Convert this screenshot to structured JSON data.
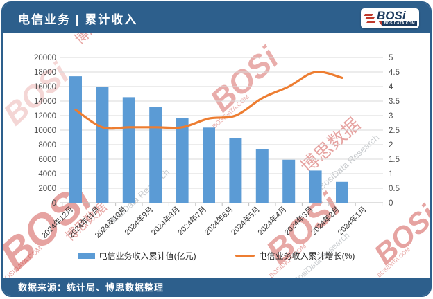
{
  "header": {
    "title": "电信业务 | 累计收入"
  },
  "logo": {
    "name": "BOSi",
    "domain": "BOSIDATA.COM"
  },
  "footer": {
    "source": "数据来源：统计局、博思数据整理"
  },
  "watermark": {
    "brand": "BOSi",
    "brand_cn": "博思数据",
    "research": "BosiData Research",
    "domain": "BOSIDATA.COM"
  },
  "colors": {
    "header_bg": "#2d5f8c",
    "bar": "#5b9bd5",
    "line": "#ed7d31",
    "grid": "#d9d9d9",
    "axis_line": "#bfbfbf",
    "tick_text": "#4d4d4d",
    "x_label_text": "#333333",
    "watermark_red": "#cf4a45",
    "watermark_gray": "#9aa0a6"
  },
  "chart_data": {
    "type": "bar+line combo",
    "categories": [
      "2024年12月",
      "2024年11月",
      "2024年10月",
      "2024年9月",
      "2024年8月",
      "2024年7月",
      "2024年6月",
      "2024年5月",
      "2024年4月",
      "2024年3月",
      "2024年2月",
      "2024年1月"
    ],
    "series": [
      {
        "name": "电信业务收入累计值(亿元)",
        "type": "bar",
        "axis": "left",
        "values": [
          17417,
          15949,
          14535,
          13152,
          11714,
          10354,
          8941,
          7387,
          5924,
          4437,
          2877,
          null
        ]
      },
      {
        "name": "电信业务收入累计增长(%)",
        "type": "line",
        "axis": "right",
        "values": [
          3.2,
          2.6,
          2.6,
          2.6,
          2.6,
          2.9,
          3.0,
          3.6,
          4.0,
          4.5,
          4.3,
          null
        ]
      }
    ],
    "left_axis": {
      "min": 0,
      "max": 20000,
      "step": 2000,
      "ticks": [
        0,
        2000,
        4000,
        6000,
        8000,
        10000,
        12000,
        14000,
        16000,
        18000,
        20000
      ]
    },
    "right_axis": {
      "min": 0,
      "max": 5,
      "step": 0.5,
      "ticks": [
        0,
        0.5,
        1,
        1.5,
        2,
        2.5,
        3,
        3.5,
        4,
        4.5,
        5
      ]
    },
    "grid": true,
    "legend_position": "bottom"
  }
}
